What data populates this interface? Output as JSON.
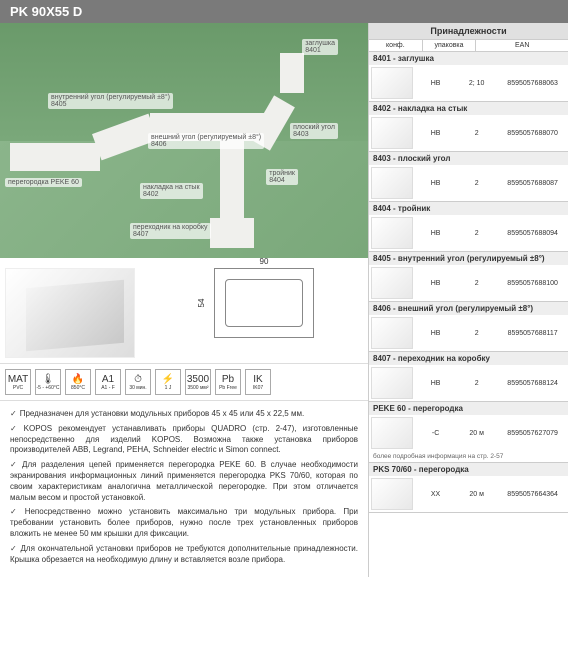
{
  "header": {
    "title": "PK 90X55 D"
  },
  "callouts": {
    "innerCorner": {
      "label": "внутренний угол\n(регулируемый ±8°)",
      "code": "8405"
    },
    "outerCorner": {
      "label": "внешний угол\n(регулируемый ±8°)",
      "code": "8406"
    },
    "endCap": {
      "label": "заглушка",
      "code": "8401"
    },
    "flatCorner": {
      "label": "плоский угол",
      "code": "8403"
    },
    "tee": {
      "label": "тройник",
      "code": "8404"
    },
    "joint": {
      "label": "накладка на стык",
      "code": "8402"
    },
    "boxAdapter": {
      "label": "переходник на коробку",
      "code": "8407"
    },
    "partition": {
      "label": "перегородка\nPEKE 60"
    }
  },
  "dimensions": {
    "width": "90",
    "height": "54"
  },
  "icons": [
    {
      "glyph": "MAT",
      "label": "PVC"
    },
    {
      "glyph": "🌡",
      "label": "-5 - +60°C"
    },
    {
      "glyph": "🔥",
      "label": "850°C"
    },
    {
      "glyph": "A1",
      "label": "A1 - F"
    },
    {
      "glyph": "⏱",
      "label": "30 мин."
    },
    {
      "glyph": "⚡",
      "label": "1 J"
    },
    {
      "glyph": "3500",
      "label": "3500 мм²"
    },
    {
      "glyph": "Pb",
      "label": "Pb Free"
    },
    {
      "glyph": "IK",
      "label": "IK07"
    }
  ],
  "desc": {
    "p1": "Предназначен для установки модульных приборов 45 x 45 или 45 x 22,5 мм.",
    "p2": "KOPOS рекомендует устанавливать приборы QUADRO (стр. 2-47), изготовленные непосредственно для изделий KOPOS. Возможна также установка приборов производителей ABB, Legrand, PEHA, Schneider electric и Simon connect.",
    "p3": "Для разделения цепей применяется перегородка PEKE 60. В случае необходимости экранирования информационных линий применяется перегородка PKS 70/60, которая по своим характеристикам аналогична металлической перегородке. При этом отличается малым весом и простой установкой.",
    "p4": "Непосредственно можно установить максимально три модульных прибора. При требовании установить более приборов, нужно после трех установленных приборов вложить не менее 50 мм крышки для фиксации.",
    "p5": "Для окончательной установки приборов не требуются дополнительные принадлежности. Крышка обрезается на необходимую длину и вставляется возле прибора."
  },
  "accHeader": {
    "title": "Принадлежности",
    "c1": "конф.",
    "c2": "упаковка",
    "c3": "EAN"
  },
  "accessories": [
    {
      "title": "8401 - заглушка",
      "conf": "HB",
      "pack": "2; 10",
      "ean": "8595057688063"
    },
    {
      "title": "8402 - накладка на стык",
      "conf": "HB",
      "pack": "2",
      "ean": "8595057688070"
    },
    {
      "title": "8403 - плоский угол",
      "conf": "HB",
      "pack": "2",
      "ean": "8595057688087"
    },
    {
      "title": "8404 - тройник",
      "conf": "HB",
      "pack": "2",
      "ean": "8595057688094"
    },
    {
      "title": "8405 - внутренний угол (регулируемый ±8°)",
      "conf": "HB",
      "pack": "2",
      "ean": "8595057688100"
    },
    {
      "title": "8406 - внешний угол (регулируемый ±8°)",
      "conf": "HB",
      "pack": "2",
      "ean": "8595057688117"
    },
    {
      "title": "8407 - переходник на коробку",
      "conf": "HB",
      "pack": "2",
      "ean": "8595057688124"
    },
    {
      "title": "PEKE 60 - перегородка",
      "conf": "-C",
      "pack": "20 м",
      "ean": "8595057627079",
      "note": "более подробная информация на стр. 2-57"
    },
    {
      "title": "PKS 70/60 - перегородка",
      "conf": "XX",
      "pack": "20 м",
      "ean": "8595057664364"
    }
  ]
}
